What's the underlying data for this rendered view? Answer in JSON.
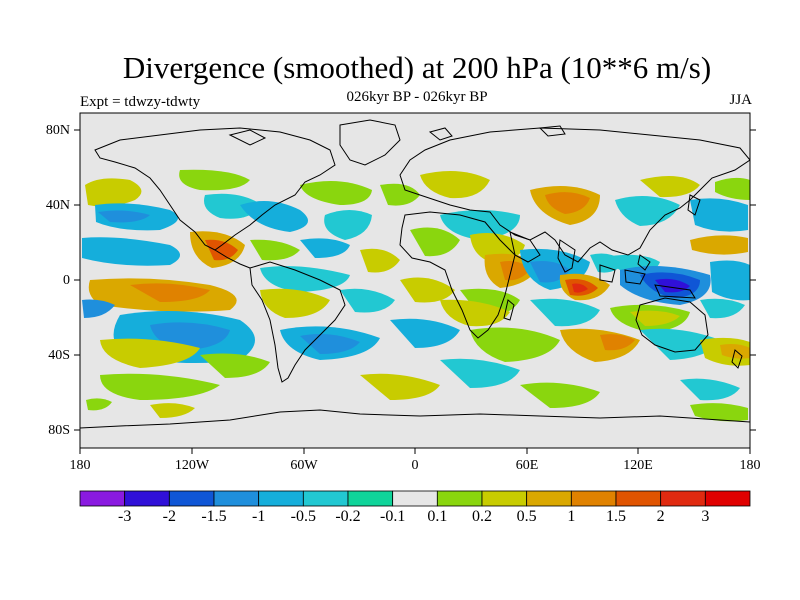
{
  "figure": {
    "title": "Divergence (smoothed) at 200 hPa (10**6 m/s)",
    "subtitle": "026kyr BP - 026kyr BP",
    "left_label": "Expt = tdwzy-tdwty",
    "right_label": "JJA"
  },
  "axes": {
    "lat_ticks": [
      "80N",
      "40N",
      "0",
      "40S",
      "80S"
    ],
    "lon_ticks": [
      "180",
      "120W",
      "60W",
      "0",
      "60E",
      "120E",
      "180"
    ]
  },
  "colorbar": {
    "colors": [
      "#8a1ae0",
      "#3010d8",
      "#0f56d6",
      "#1f8fdc",
      "#15aedb",
      "#22c8d2",
      "#0fd49a",
      "#e6e6e6",
      "#8ad60e",
      "#c8cc00",
      "#daa800",
      "#e08200",
      "#e05400",
      "#e02a10",
      "#e00000"
    ],
    "labels": [
      "-3",
      "-2",
      "-1.5",
      "-1",
      "-0.5",
      "-0.2",
      "-0.1",
      "0.1",
      "0.2",
      "0.5",
      "1",
      "1.5",
      "2",
      "3"
    ]
  },
  "map": {
    "background": "#e6e6e6",
    "land_outline": "#000000"
  }
}
